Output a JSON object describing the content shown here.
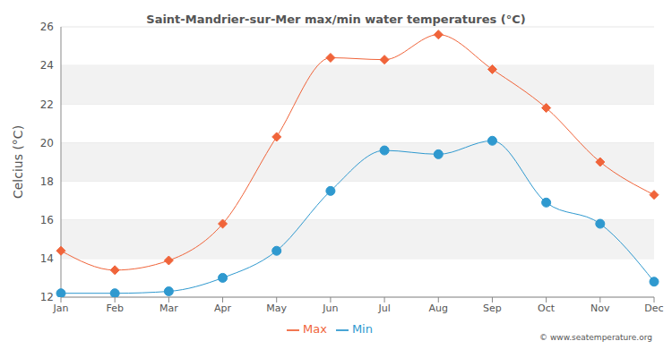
{
  "chart_data": {
    "type": "line",
    "title": "Saint-Mandrier-sur-Mer max/min water temperatures (°C)",
    "y_label": "Celcius (°C)",
    "annotations": [
      "© www.seatemperature.org"
    ],
    "categories": [
      "Jan",
      "Feb",
      "Mar",
      "Apr",
      "May",
      "Jun",
      "Jul",
      "Aug",
      "Sep",
      "Oct",
      "Nov",
      "Dec"
    ],
    "series": [
      {
        "name": "Max",
        "color": "#f0643a",
        "marker": "diamond",
        "values": [
          14.4,
          13.4,
          13.9,
          15.8,
          20.3,
          24.4,
          24.3,
          25.6,
          23.8,
          21.8,
          19.0,
          17.3
        ]
      },
      {
        "name": "Min",
        "color": "#2f99cf",
        "marker": "circle",
        "values": [
          12.2,
          12.2,
          12.3,
          13.0,
          14.4,
          17.5,
          19.6,
          19.4,
          20.1,
          16.9,
          15.8,
          12.8
        ]
      }
    ],
    "ylim": [
      12,
      26
    ],
    "yticks": [
      12,
      14,
      16,
      18,
      20,
      22,
      24,
      26
    ],
    "grid": true,
    "legend": "bottom"
  }
}
